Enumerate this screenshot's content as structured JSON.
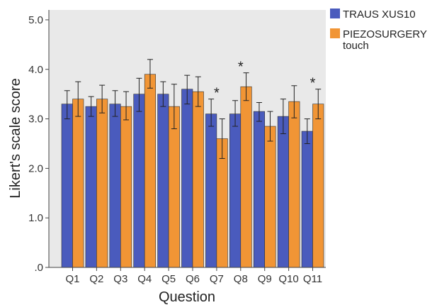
{
  "chart_data": {
    "type": "bar",
    "xlabel": "Question",
    "ylabel": "Likert's scale score",
    "ylim": [
      0,
      5.2
    ],
    "yticks": [
      0,
      1,
      2,
      3,
      4,
      5
    ],
    "ytick_labels": [
      ".0",
      "1.0",
      "2.0",
      "3.0",
      "4.0",
      "5.0"
    ],
    "categories": [
      "Q1",
      "Q2",
      "Q3",
      "Q4",
      "Q5",
      "Q6",
      "Q7",
      "Q8",
      "Q9",
      "Q10",
      "Q11"
    ],
    "series": [
      {
        "name": "TRAUS XUS10",
        "color": "#4a5bbd",
        "values": [
          3.3,
          3.25,
          3.3,
          3.5,
          3.5,
          3.6,
          3.1,
          3.1,
          3.15,
          3.05,
          2.75
        ],
        "err_low": [
          3.0,
          3.05,
          3.05,
          3.15,
          3.25,
          3.3,
          2.85,
          2.85,
          2.95,
          2.7,
          2.5
        ],
        "err_high": [
          3.57,
          3.45,
          3.57,
          3.82,
          3.75,
          3.88,
          3.4,
          3.37,
          3.33,
          3.4,
          3.0
        ]
      },
      {
        "name": "PIEZOSURGERY touch",
        "name_lines": [
          "PIEZOSURGERY",
          "touch"
        ],
        "color": "#f19535",
        "values": [
          3.4,
          3.4,
          3.25,
          3.9,
          3.25,
          3.55,
          2.6,
          3.65,
          2.85,
          3.35,
          3.3
        ],
        "err_low": [
          3.05,
          3.12,
          2.98,
          3.62,
          2.8,
          3.25,
          2.2,
          3.37,
          2.55,
          3.02,
          3.0
        ],
        "err_high": [
          3.75,
          3.68,
          3.55,
          4.2,
          3.7,
          3.85,
          3.0,
          3.93,
          3.15,
          3.67,
          3.6
        ]
      }
    ],
    "significance": [
      {
        "category": "Q7",
        "symbol": "*"
      },
      {
        "category": "Q8",
        "symbol": "*"
      },
      {
        "category": "Q11",
        "symbol": "*"
      }
    ],
    "grid": false,
    "legend_position": "top-right",
    "plot_background": "#e9e9e9"
  }
}
